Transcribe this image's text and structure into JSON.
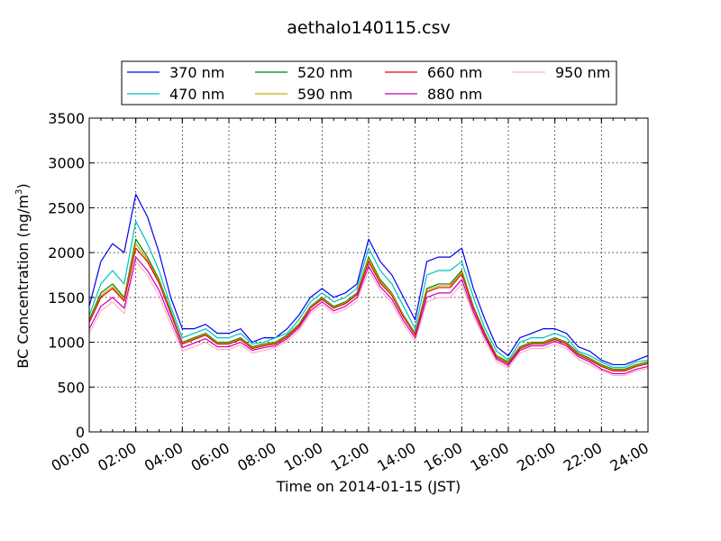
{
  "chart_data": {
    "type": "line",
    "title": "aethalo140115.csv",
    "xlabel": "Time on 2014-01-15 (JST)",
    "ylabel": "BC Concentration (ng/m",
    "ylabel_sup": "3",
    "ylabel_end": ")",
    "xlim": [
      "00:00",
      "24:00"
    ],
    "ylim": [
      0,
      3500
    ],
    "grid": true,
    "legend_position": "top",
    "x_tick_labels": [
      "00:00",
      "02:00",
      "04:00",
      "06:00",
      "08:00",
      "10:00",
      "12:00",
      "14:00",
      "16:00",
      "18:00",
      "20:00",
      "22:00",
      "24:00"
    ],
    "y_tick_labels": [
      "0",
      "500",
      "1000",
      "1500",
      "2000",
      "2500",
      "3000",
      "3500"
    ],
    "x": [
      "00:00",
      "00:30",
      "01:00",
      "01:30",
      "02:00",
      "02:30",
      "03:00",
      "03:30",
      "04:00",
      "04:30",
      "05:00",
      "05:30",
      "06:00",
      "06:30",
      "07:00",
      "07:30",
      "08:00",
      "08:30",
      "09:00",
      "09:30",
      "10:00",
      "10:30",
      "11:00",
      "11:30",
      "12:00",
      "12:30",
      "13:00",
      "13:30",
      "14:00",
      "14:30",
      "15:00",
      "15:30",
      "16:00",
      "16:30",
      "17:00",
      "17:30",
      "18:00",
      "18:30",
      "19:00",
      "19:30",
      "20:00",
      "20:30",
      "21:00",
      "21:30",
      "22:00",
      "22:30",
      "23:00",
      "23:30",
      "24:00"
    ],
    "series": [
      {
        "name": "370 nm",
        "color": "#0000ee",
        "values": [
          1400,
          1900,
          2100,
          2000,
          2650,
          2400,
          2000,
          1500,
          1150,
          1150,
          1200,
          1100,
          1100,
          1150,
          1000,
          1050,
          1050,
          1150,
          1300,
          1500,
          1600,
          1500,
          1550,
          1650,
          2150,
          1900,
          1750,
          1500,
          1250,
          1900,
          1950,
          1950,
          2050,
          1600,
          1250,
          950,
          850,
          1050,
          1100,
          1150,
          1150,
          1100,
          950,
          900,
          800,
          750,
          750,
          800,
          850
        ]
      },
      {
        "name": "470 nm",
        "color": "#00c0c0",
        "values": [
          1300,
          1650,
          1800,
          1650,
          2350,
          2100,
          1800,
          1400,
          1050,
          1100,
          1150,
          1050,
          1050,
          1100,
          980,
          1000,
          1050,
          1100,
          1250,
          1450,
          1550,
          1450,
          1500,
          1600,
          2050,
          1800,
          1650,
          1400,
          1150,
          1750,
          1800,
          1800,
          1900,
          1500,
          1150,
          900,
          800,
          1000,
          1050,
          1050,
          1100,
          1050,
          900,
          850,
          780,
          720,
          720,
          780,
          800
        ]
      },
      {
        "name": "520 nm",
        "color": "#008000",
        "values": [
          1250,
          1550,
          1650,
          1500,
          2150,
          1950,
          1700,
          1350,
          1000,
          1050,
          1100,
          1000,
          1000,
          1050,
          950,
          980,
          1000,
          1080,
          1200,
          1400,
          1500,
          1400,
          1450,
          1550,
          1950,
          1700,
          1550,
          1300,
          1100,
          1600,
          1650,
          1650,
          1800,
          1400,
          1100,
          850,
          780,
          950,
          1000,
          1000,
          1050,
          1000,
          880,
          820,
          750,
          700,
          700,
          750,
          780
        ]
      },
      {
        "name": "590 nm",
        "color": "#c0b000",
        "values": [
          1230,
          1520,
          1620,
          1480,
          2100,
          1920,
          1680,
          1330,
          990,
          1040,
          1090,
          990,
          990,
          1040,
          940,
          970,
          990,
          1070,
          1190,
          1390,
          1490,
          1390,
          1440,
          1540,
          1930,
          1680,
          1540,
          1290,
          1090,
          1580,
          1630,
          1630,
          1780,
          1390,
          1090,
          840,
          770,
          940,
          990,
          990,
          1040,
          990,
          870,
          810,
          740,
          690,
          690,
          740,
          770
        ]
      },
      {
        "name": "660 nm",
        "color": "#ee0000",
        "values": [
          1220,
          1500,
          1600,
          1460,
          2050,
          1900,
          1660,
          1320,
          980,
          1030,
          1080,
          980,
          980,
          1030,
          930,
          960,
          980,
          1060,
          1180,
          1380,
          1480,
          1380,
          1430,
          1530,
          1900,
          1660,
          1520,
          1280,
          1080,
          1560,
          1610,
          1610,
          1760,
          1380,
          1080,
          830,
          760,
          930,
          980,
          980,
          1030,
          980,
          860,
          800,
          730,
          680,
          680,
          730,
          760
        ]
      },
      {
        "name": "880 nm",
        "color": "#c000c0",
        "values": [
          1150,
          1400,
          1500,
          1380,
          1950,
          1800,
          1580,
          1260,
          940,
          990,
          1040,
          950,
          950,
          1000,
          910,
          940,
          960,
          1040,
          1160,
          1350,
          1450,
          1350,
          1400,
          1500,
          1850,
          1620,
          1480,
          1240,
          1050,
          1500,
          1550,
          1550,
          1700,
          1340,
          1050,
          810,
          740,
          910,
          960,
          960,
          1010,
          960,
          840,
          780,
          700,
          650,
          650,
          700,
          730
        ]
      },
      {
        "name": "950 nm",
        "color": "#ffb0c0",
        "values": [
          1100,
          1350,
          1450,
          1320,
          1900,
          1750,
          1520,
          1200,
          900,
          950,
          1000,
          920,
          920,
          970,
          880,
          910,
          940,
          1010,
          1130,
          1320,
          1420,
          1320,
          1370,
          1460,
          1800,
          1580,
          1440,
          1200,
          1010,
          1450,
          1500,
          1500,
          1650,
          1300,
          1010,
          780,
          710,
          880,
          930,
          930,
          980,
          930,
          810,
          750,
          680,
          630,
          630,
          680,
          710
        ]
      }
    ]
  }
}
